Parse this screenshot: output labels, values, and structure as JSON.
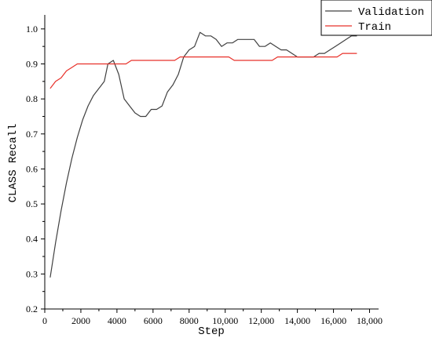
{
  "chart_data": {
    "type": "line",
    "title": "",
    "xlabel": "Step",
    "ylabel": "CLASS Recall",
    "xlim": [
      0,
      18500
    ],
    "ylim": [
      0.2,
      1.04
    ],
    "xticks": [
      0,
      2000,
      4000,
      6000,
      8000,
      10000,
      12000,
      14000,
      16000,
      18000
    ],
    "xtick_labels": [
      "0",
      "2000",
      "4000",
      "6000",
      "8000",
      "10,000",
      "12,000",
      "14,000",
      "16,000",
      "18,000"
    ],
    "yticks": [
      0.2,
      0.3,
      0.4,
      0.5,
      0.6,
      0.7,
      0.8,
      0.9,
      1.0
    ],
    "ytick_labels": [
      "0.2",
      "0.3",
      "0.4",
      "0.5",
      "0.6",
      "0.7",
      "0.8",
      "0.9",
      "1.0"
    ],
    "grid": false,
    "legend_position": "top-right",
    "series": [
      {
        "name": "Validation",
        "color": "#404040",
        "points": [
          [
            300,
            0.29
          ],
          [
            600,
            0.39
          ],
          [
            900,
            0.48
          ],
          [
            1200,
            0.56
          ],
          [
            1500,
            0.63
          ],
          [
            1800,
            0.69
          ],
          [
            2100,
            0.74
          ],
          [
            2400,
            0.78
          ],
          [
            2700,
            0.81
          ],
          [
            3000,
            0.83
          ],
          [
            3300,
            0.85
          ],
          [
            3500,
            0.9
          ],
          [
            3800,
            0.91
          ],
          [
            4100,
            0.87
          ],
          [
            4400,
            0.8
          ],
          [
            4700,
            0.78
          ],
          [
            5000,
            0.76
          ],
          [
            5300,
            0.75
          ],
          [
            5600,
            0.75
          ],
          [
            5900,
            0.77
          ],
          [
            6200,
            0.77
          ],
          [
            6500,
            0.78
          ],
          [
            6800,
            0.82
          ],
          [
            7100,
            0.84
          ],
          [
            7400,
            0.87
          ],
          [
            7700,
            0.92
          ],
          [
            8000,
            0.94
          ],
          [
            8300,
            0.95
          ],
          [
            8600,
            0.99
          ],
          [
            8900,
            0.98
          ],
          [
            9200,
            0.98
          ],
          [
            9500,
            0.97
          ],
          [
            9800,
            0.95
          ],
          [
            10100,
            0.96
          ],
          [
            10400,
            0.96
          ],
          [
            10700,
            0.97
          ],
          [
            11000,
            0.97
          ],
          [
            11300,
            0.97
          ],
          [
            11600,
            0.97
          ],
          [
            11900,
            0.95
          ],
          [
            12200,
            0.95
          ],
          [
            12500,
            0.96
          ],
          [
            12800,
            0.95
          ],
          [
            13100,
            0.94
          ],
          [
            13400,
            0.94
          ],
          [
            13700,
            0.93
          ],
          [
            14000,
            0.92
          ],
          [
            14300,
            0.92
          ],
          [
            14600,
            0.92
          ],
          [
            14900,
            0.92
          ],
          [
            15200,
            0.93
          ],
          [
            15500,
            0.93
          ],
          [
            15800,
            0.94
          ],
          [
            16100,
            0.95
          ],
          [
            16400,
            0.96
          ],
          [
            16700,
            0.97
          ],
          [
            17000,
            0.98
          ],
          [
            17300,
            0.98
          ]
        ]
      },
      {
        "name": "Train",
        "color": "#e8312a",
        "points": [
          [
            300,
            0.83
          ],
          [
            600,
            0.85
          ],
          [
            900,
            0.86
          ],
          [
            1200,
            0.88
          ],
          [
            1500,
            0.89
          ],
          [
            1800,
            0.9
          ],
          [
            2100,
            0.9
          ],
          [
            2400,
            0.9
          ],
          [
            2700,
            0.9
          ],
          [
            3000,
            0.9
          ],
          [
            3300,
            0.9
          ],
          [
            3600,
            0.9
          ],
          [
            3900,
            0.9
          ],
          [
            4200,
            0.9
          ],
          [
            4500,
            0.9
          ],
          [
            4800,
            0.91
          ],
          [
            5100,
            0.91
          ],
          [
            5400,
            0.91
          ],
          [
            5700,
            0.91
          ],
          [
            6000,
            0.91
          ],
          [
            6300,
            0.91
          ],
          [
            6600,
            0.91
          ],
          [
            6900,
            0.91
          ],
          [
            7200,
            0.91
          ],
          [
            7500,
            0.92
          ],
          [
            7800,
            0.92
          ],
          [
            8100,
            0.92
          ],
          [
            8400,
            0.92
          ],
          [
            8700,
            0.92
          ],
          [
            9000,
            0.92
          ],
          [
            9300,
            0.92
          ],
          [
            9600,
            0.92
          ],
          [
            9900,
            0.92
          ],
          [
            10200,
            0.92
          ],
          [
            10500,
            0.91
          ],
          [
            10800,
            0.91
          ],
          [
            11100,
            0.91
          ],
          [
            11400,
            0.91
          ],
          [
            11700,
            0.91
          ],
          [
            12000,
            0.91
          ],
          [
            12300,
            0.91
          ],
          [
            12600,
            0.91
          ],
          [
            12900,
            0.92
          ],
          [
            13200,
            0.92
          ],
          [
            13500,
            0.92
          ],
          [
            13800,
            0.92
          ],
          [
            14100,
            0.92
          ],
          [
            14400,
            0.92
          ],
          [
            14700,
            0.92
          ],
          [
            15000,
            0.92
          ],
          [
            15300,
            0.92
          ],
          [
            15600,
            0.92
          ],
          [
            15900,
            0.92
          ],
          [
            16200,
            0.92
          ],
          [
            16500,
            0.93
          ],
          [
            16800,
            0.93
          ],
          [
            17100,
            0.93
          ],
          [
            17300,
            0.93
          ]
        ]
      }
    ]
  }
}
